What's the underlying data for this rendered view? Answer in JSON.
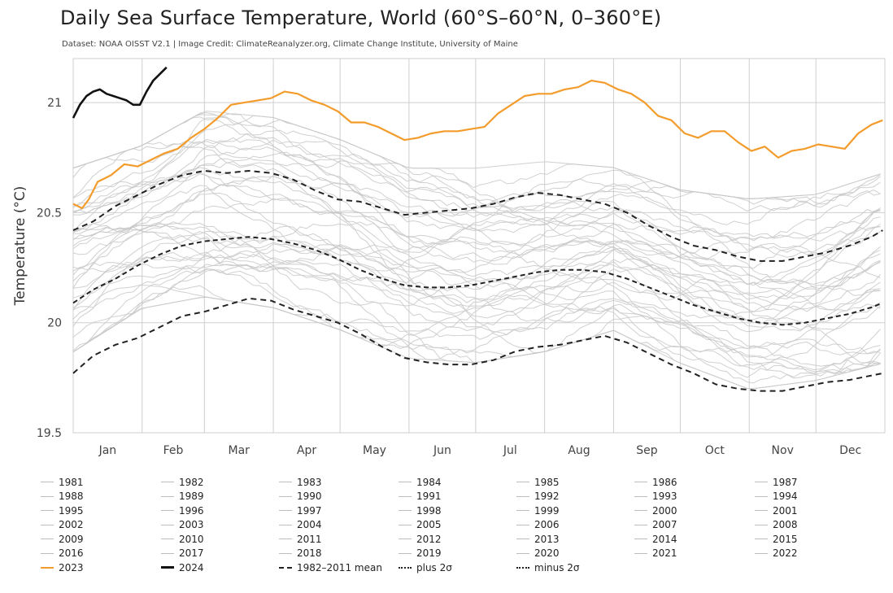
{
  "title": "Daily Sea Surface Temperature, World (60°S–60°N, 0–360°E)",
  "subtitle": "Dataset: NOAA OISST V2.1 | Image Credit: ClimateReanalyzer.org, Climate Change Institute, University of Maine",
  "colors": {
    "background_years": "#c8c8c8",
    "year_2023": "#f39c2b",
    "year_2024": "#111111",
    "mean": "#222222",
    "grid": "#cfcfcf"
  },
  "chart_data": {
    "type": "line",
    "title": "Daily Sea Surface Temperature, World (60°S–60°N, 0–360°E)",
    "xlabel": "",
    "ylabel": "Temperature (°C)",
    "ylim": [
      19.5,
      21.2
    ],
    "xlim": [
      1,
      366
    ],
    "y_ticks": [
      "19.5",
      "20",
      "20.5",
      "21"
    ],
    "x_tick_labels": [
      "Jan",
      "Feb",
      "Mar",
      "Apr",
      "May",
      "Jun",
      "Jul",
      "Aug",
      "Sep",
      "Oct",
      "Nov",
      "Dec"
    ],
    "x_tick_days": [
      1,
      32,
      60,
      91,
      121,
      152,
      182,
      213,
      244,
      274,
      305,
      335
    ],
    "grid": true,
    "legend_position": "bottom",
    "legend_columns": 7,
    "background_year_names": [
      "1981",
      "1982",
      "1983",
      "1984",
      "1985",
      "1986",
      "1987",
      "1988",
      "1989",
      "1990",
      "1991",
      "1992",
      "1993",
      "1994",
      "1995",
      "1996",
      "1997",
      "1998",
      "1999",
      "2000",
      "2001",
      "2002",
      "2003",
      "2004",
      "2005",
      "2006",
      "2007",
      "2008",
      "2009",
      "2010",
      "2011",
      "2012",
      "2013",
      "2014",
      "2015",
      "2016",
      "2017",
      "2018",
      "2019",
      "2020",
      "2021",
      "2022"
    ],
    "background_years_envelope": {
      "x": [
        1,
        32,
        60,
        91,
        121,
        152,
        182,
        213,
        244,
        274,
        305,
        335,
        366
      ],
      "low": [
        19.85,
        20.05,
        20.1,
        20.05,
        19.95,
        19.82,
        19.8,
        19.85,
        19.95,
        19.8,
        19.68,
        19.72,
        19.8
      ],
      "high": [
        20.72,
        20.82,
        20.98,
        20.95,
        20.85,
        20.72,
        20.72,
        20.75,
        20.72,
        20.62,
        20.58,
        20.6,
        20.7
      ]
    },
    "series": [
      {
        "name": "2023",
        "x": [
          1,
          5,
          8,
          12,
          18,
          24,
          30,
          36,
          42,
          48,
          54,
          60,
          66,
          72,
          78,
          84,
          90,
          96,
          102,
          108,
          114,
          120,
          126,
          132,
          138,
          144,
          150,
          156,
          162,
          168,
          174,
          180,
          186,
          192,
          198,
          204,
          210,
          216,
          222,
          228,
          234,
          240,
          246,
          252,
          258,
          264,
          270,
          276,
          282,
          288,
          294,
          300,
          306,
          312,
          318,
          324,
          330,
          336,
          342,
          348,
          354,
          360,
          365
        ],
        "y": [
          20.54,
          20.52,
          20.56,
          20.64,
          20.67,
          20.72,
          20.71,
          20.74,
          20.77,
          20.79,
          20.84,
          20.88,
          20.93,
          20.99,
          21.0,
          21.01,
          21.02,
          21.05,
          21.04,
          21.01,
          20.99,
          20.96,
          20.91,
          20.91,
          20.89,
          20.86,
          20.83,
          20.84,
          20.86,
          20.87,
          20.87,
          20.88,
          20.89,
          20.95,
          20.99,
          21.03,
          21.04,
          21.04,
          21.06,
          21.07,
          21.1,
          21.09,
          21.06,
          21.04,
          21.0,
          20.94,
          20.92,
          20.86,
          20.84,
          20.87,
          20.87,
          20.82,
          20.78,
          20.8,
          20.75,
          20.78,
          20.79,
          20.81,
          20.8,
          20.79,
          20.86,
          20.9,
          20.92
        ]
      },
      {
        "name": "2024",
        "x": [
          1,
          4,
          7,
          10,
          13,
          16,
          19,
          22,
          25,
          28,
          31,
          34,
          37,
          40,
          43
        ],
        "y": [
          20.93,
          20.99,
          21.03,
          21.05,
          21.06,
          21.04,
          21.03,
          21.02,
          21.01,
          20.99,
          20.99,
          21.05,
          21.1,
          21.13,
          21.16
        ]
      },
      {
        "name": "1982-2011 mean",
        "x": [
          1,
          10,
          20,
          30,
          40,
          50,
          60,
          70,
          80,
          90,
          100,
          110,
          120,
          130,
          140,
          150,
          160,
          170,
          180,
          190,
          200,
          210,
          220,
          230,
          240,
          250,
          260,
          270,
          280,
          290,
          300,
          310,
          320,
          330,
          340,
          350,
          360,
          365
        ],
        "y": [
          20.09,
          20.15,
          20.2,
          20.26,
          20.31,
          20.35,
          20.37,
          20.38,
          20.39,
          20.38,
          20.36,
          20.33,
          20.29,
          20.24,
          20.2,
          20.17,
          20.16,
          20.16,
          20.17,
          20.19,
          20.21,
          20.23,
          20.24,
          20.24,
          20.23,
          20.2,
          20.16,
          20.12,
          20.08,
          20.05,
          20.02,
          20.0,
          19.99,
          20.0,
          20.02,
          20.04,
          20.07,
          20.09
        ]
      },
      {
        "name": "plus 2σ",
        "x": [
          1,
          10,
          20,
          30,
          40,
          50,
          60,
          70,
          80,
          90,
          100,
          110,
          120,
          130,
          140,
          150,
          160,
          170,
          180,
          190,
          200,
          210,
          220,
          230,
          240,
          250,
          260,
          270,
          280,
          290,
          300,
          310,
          320,
          330,
          340,
          350,
          360,
          365
        ],
        "y": [
          20.42,
          20.46,
          20.53,
          20.58,
          20.63,
          20.67,
          20.69,
          20.68,
          20.69,
          20.68,
          20.65,
          20.6,
          20.56,
          20.55,
          20.52,
          20.49,
          20.5,
          20.51,
          20.52,
          20.54,
          20.57,
          20.59,
          20.58,
          20.56,
          20.54,
          20.5,
          20.44,
          20.39,
          20.35,
          20.33,
          20.3,
          20.28,
          20.28,
          20.3,
          20.32,
          20.35,
          20.39,
          20.42
        ]
      },
      {
        "name": "minus 2σ",
        "x": [
          1,
          10,
          20,
          30,
          40,
          50,
          60,
          70,
          80,
          90,
          100,
          110,
          120,
          130,
          140,
          150,
          160,
          170,
          180,
          190,
          200,
          210,
          220,
          230,
          240,
          250,
          260,
          270,
          280,
          290,
          300,
          310,
          320,
          330,
          340,
          350,
          360,
          365
        ],
        "y": [
          19.77,
          19.85,
          19.9,
          19.93,
          19.98,
          20.03,
          20.05,
          20.08,
          20.11,
          20.1,
          20.06,
          20.03,
          20.0,
          19.95,
          19.89,
          19.84,
          19.82,
          19.81,
          19.81,
          19.83,
          19.87,
          19.89,
          19.9,
          19.92,
          19.94,
          19.91,
          19.86,
          19.81,
          19.77,
          19.72,
          19.7,
          19.69,
          19.69,
          19.71,
          19.73,
          19.74,
          19.76,
          19.77
        ]
      }
    ]
  },
  "legend": [
    {
      "label": "1981",
      "style": "gray"
    },
    {
      "label": "1982",
      "style": "gray"
    },
    {
      "label": "1983",
      "style": "gray"
    },
    {
      "label": "1984",
      "style": "gray"
    },
    {
      "label": "1985",
      "style": "gray"
    },
    {
      "label": "1986",
      "style": "gray"
    },
    {
      "label": "1987",
      "style": "gray"
    },
    {
      "label": "1988",
      "style": "gray"
    },
    {
      "label": "1989",
      "style": "gray"
    },
    {
      "label": "1990",
      "style": "gray"
    },
    {
      "label": "1991",
      "style": "gray"
    },
    {
      "label": "1992",
      "style": "gray"
    },
    {
      "label": "1993",
      "style": "gray"
    },
    {
      "label": "1994",
      "style": "gray"
    },
    {
      "label": "1995",
      "style": "gray"
    },
    {
      "label": "1996",
      "style": "gray"
    },
    {
      "label": "1997",
      "style": "gray"
    },
    {
      "label": "1998",
      "style": "gray"
    },
    {
      "label": "1999",
      "style": "gray"
    },
    {
      "label": "2000",
      "style": "gray"
    },
    {
      "label": "2001",
      "style": "gray"
    },
    {
      "label": "2002",
      "style": "gray"
    },
    {
      "label": "2003",
      "style": "gray"
    },
    {
      "label": "2004",
      "style": "gray"
    },
    {
      "label": "2005",
      "style": "gray"
    },
    {
      "label": "2006",
      "style": "gray"
    },
    {
      "label": "2007",
      "style": "gray"
    },
    {
      "label": "2008",
      "style": "gray"
    },
    {
      "label": "2009",
      "style": "gray"
    },
    {
      "label": "2010",
      "style": "gray"
    },
    {
      "label": "2011",
      "style": "gray"
    },
    {
      "label": "2012",
      "style": "gray"
    },
    {
      "label": "2013",
      "style": "gray"
    },
    {
      "label": "2014",
      "style": "gray"
    },
    {
      "label": "2015",
      "style": "gray"
    },
    {
      "label": "2016",
      "style": "gray"
    },
    {
      "label": "2017",
      "style": "gray"
    },
    {
      "label": "2018",
      "style": "gray"
    },
    {
      "label": "2019",
      "style": "gray"
    },
    {
      "label": "2020",
      "style": "gray"
    },
    {
      "label": "2021",
      "style": "gray"
    },
    {
      "label": "2022",
      "style": "gray"
    },
    {
      "label": "2023",
      "style": "orange"
    },
    {
      "label": "2024",
      "style": "black"
    },
    {
      "label": "1982–2011 mean",
      "style": "dashed"
    },
    {
      "label": "plus 2σ",
      "style": "dashdot"
    },
    {
      "label": "minus 2σ",
      "style": "dashdot"
    }
  ]
}
